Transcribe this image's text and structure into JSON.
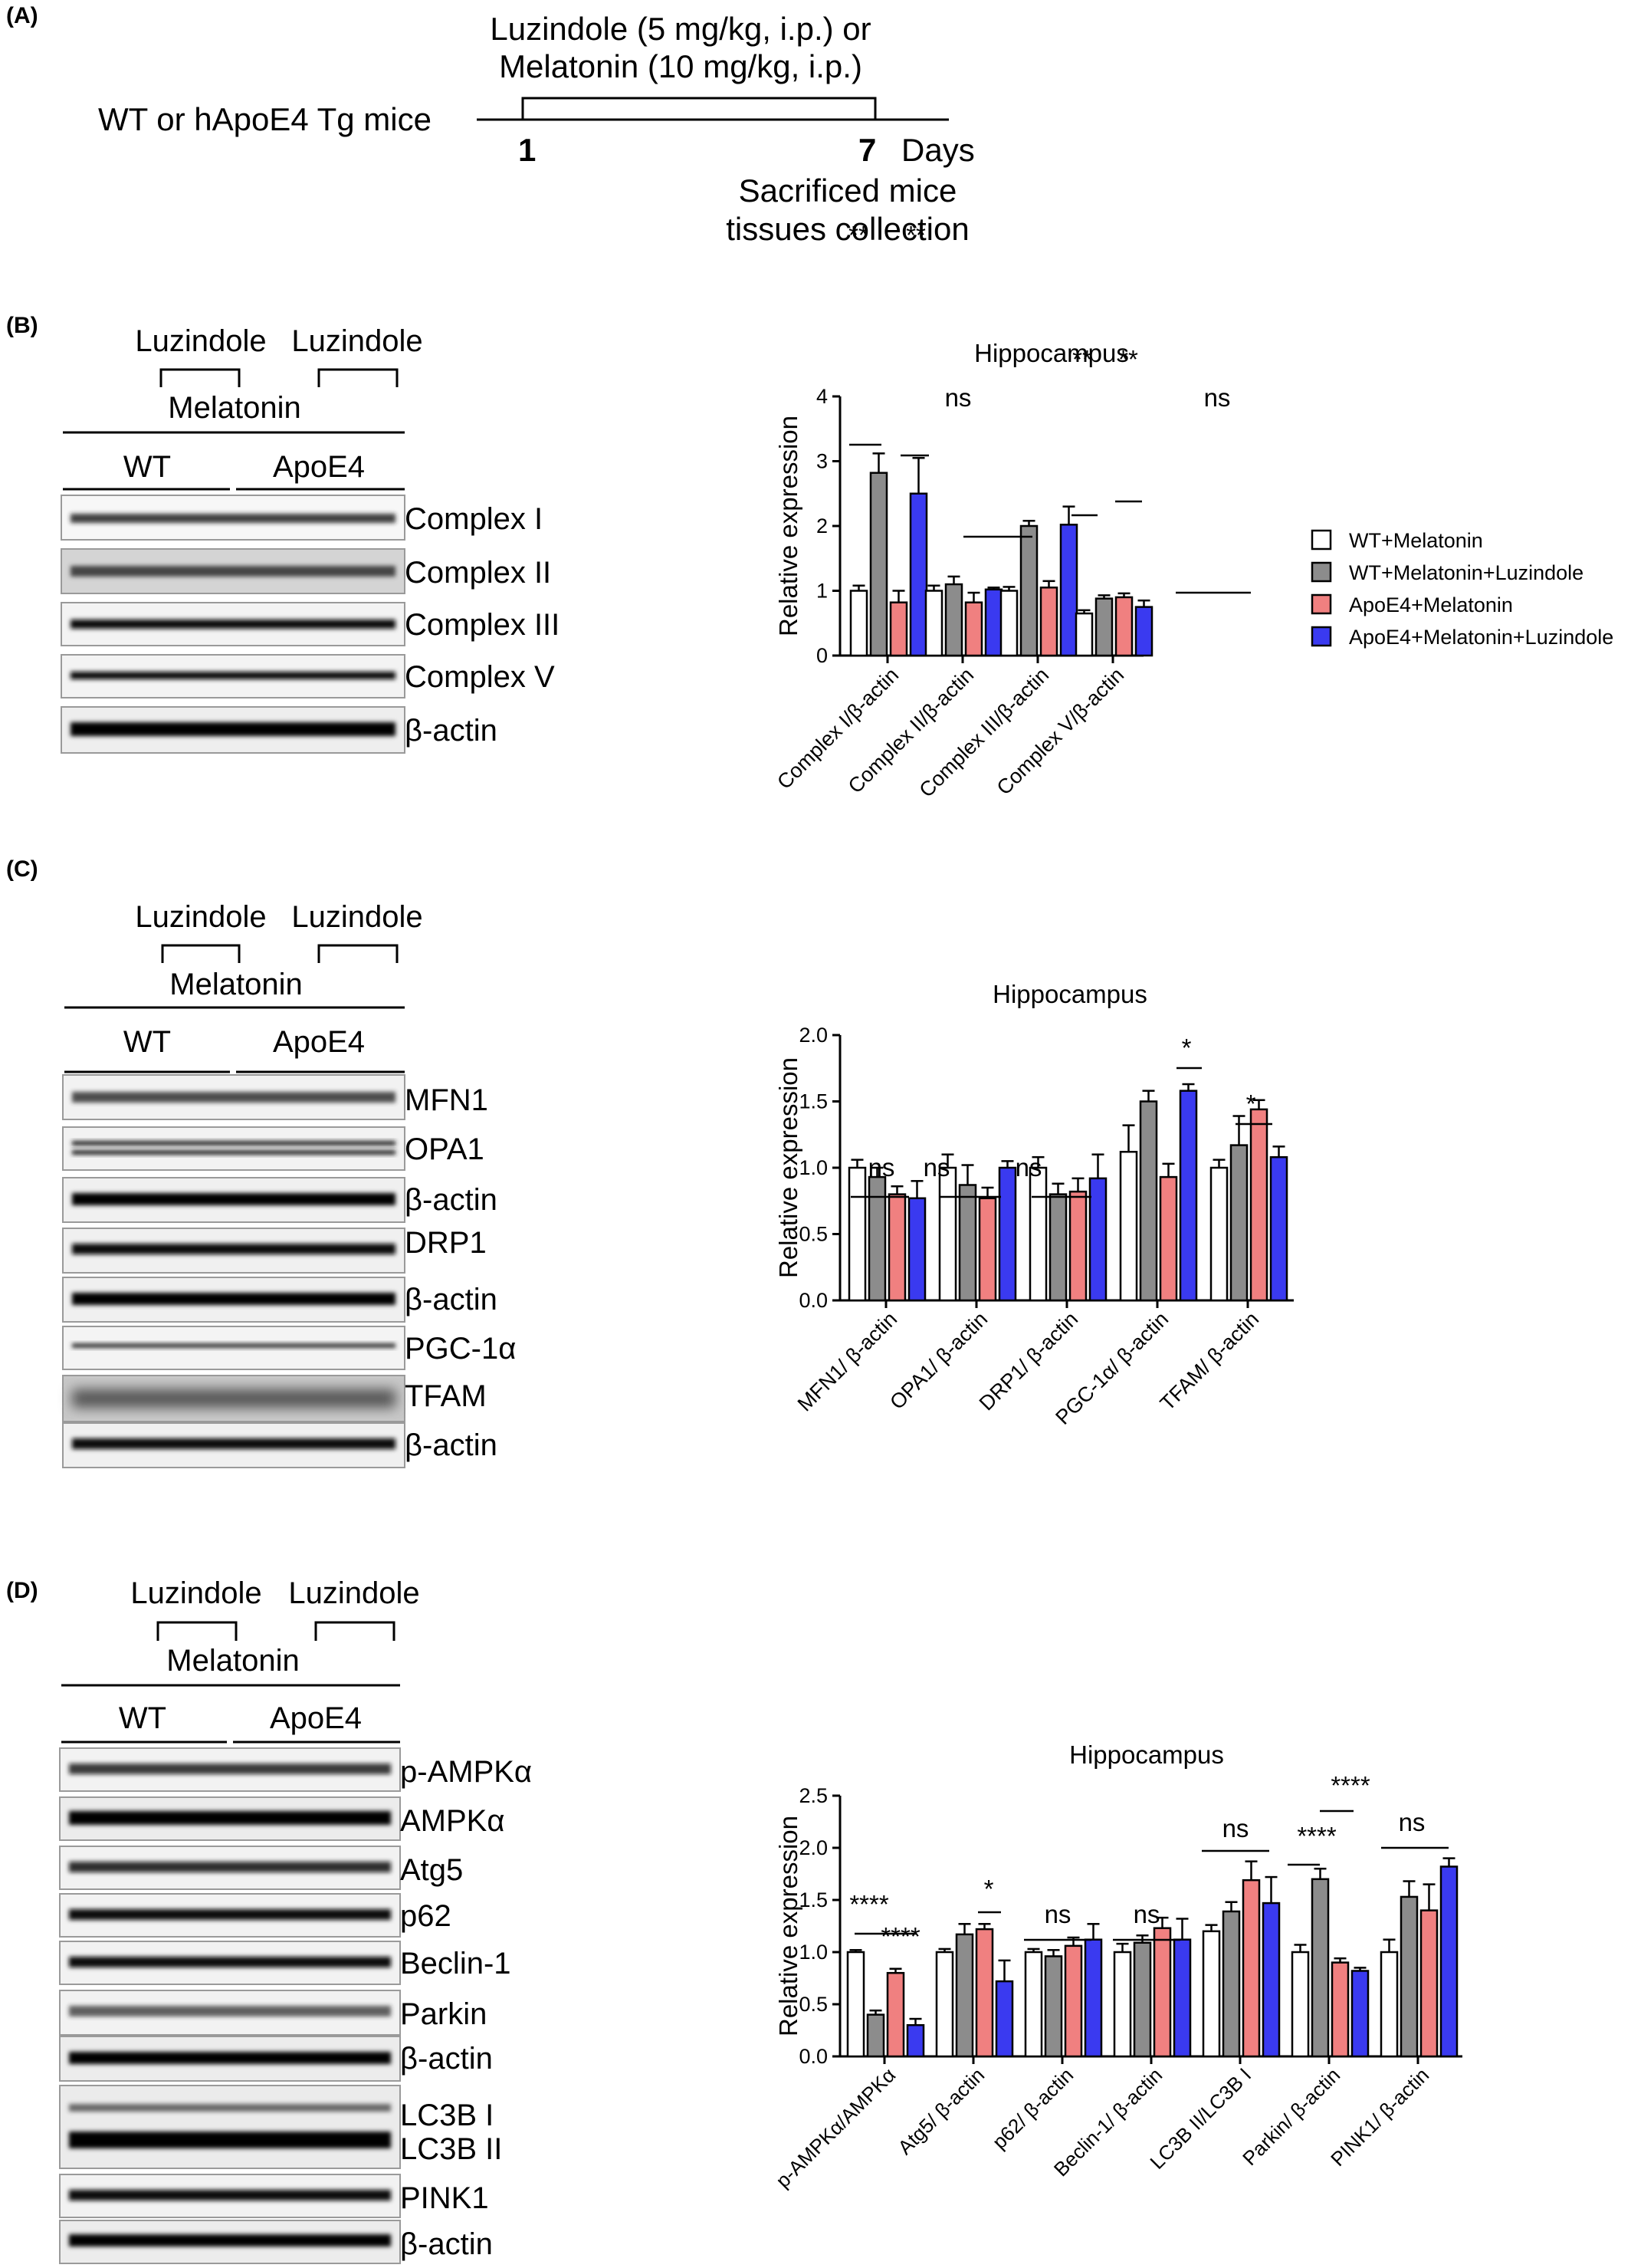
{
  "panelA": {
    "label": "(A)",
    "subject": "WT or hApoE4 Tg mice",
    "treatment_line1": "Luzindole (5 mg/kg, i.p.) or",
    "treatment_line2": "Melatonin (10 mg/kg, i.p.)",
    "day_start": "1",
    "day_end": "7",
    "days_word": "Days",
    "end_line1": "Sacrificed mice",
    "end_line2": "tissues collection"
  },
  "panelB": {
    "label": "(B)",
    "luz1": "Luzindole",
    "luz2": "Luzindole",
    "melatonin": "Melatonin",
    "wt": "WT",
    "apoe4": "ApoE4",
    "blots": [
      "Complex I",
      "Complex II",
      "Complex III",
      "Complex V",
      "β-actin"
    ]
  },
  "panelC": {
    "label": "(C)",
    "luz1": "Luzindole",
    "luz2": "Luzindole",
    "melatonin": "Melatonin",
    "wt": "WT",
    "apoe4": "ApoE4",
    "blots": [
      "MFN1",
      "OPA1",
      "β-actin",
      "DRP1",
      "β-actin",
      "PGC-1α",
      "TFAM",
      "β-actin"
    ]
  },
  "panelD": {
    "label": "(D)",
    "luz1": "Luzindole",
    "luz2": "Luzindole",
    "melatonin": "Melatonin",
    "wt": "WT",
    "apoe4": "ApoE4",
    "blots": [
      "p-AMPKα",
      "AMPKα",
      "Atg5",
      "p62",
      "Beclin-1",
      "Parkin",
      "β-actin",
      "LC3B I",
      "LC3B II",
      "PINK1",
      "β-actin"
    ]
  },
  "colors": {
    "wt_mel": "#ffffff",
    "wt_mel_luz": "#8c8c8c",
    "apoe4_mel": "#f08080",
    "apoe4_mel_luz": "#3a3af0"
  },
  "chart_data": [
    {
      "type": "bar",
      "title": "Hippocampus",
      "ylabel": "Relative expression",
      "ylim": [
        0,
        4
      ],
      "yticks": [
        "0",
        "1",
        "2",
        "3",
        "4"
      ],
      "categories": [
        "Complex I/β-actin",
        "Complex II/β-actin",
        "Complex III/β-actin",
        "Complex V/β-actin"
      ],
      "series": [
        {
          "name": "WT+Melatonin",
          "values": [
            1.0,
            1.0,
            1.0,
            0.65
          ],
          "err": [
            0.08,
            0.08,
            0.06,
            0.05
          ]
        },
        {
          "name": "WT+Melatonin+Luzindole",
          "values": [
            2.82,
            1.1,
            2.0,
            0.88
          ],
          "err": [
            0.3,
            0.12,
            0.08,
            0.05
          ]
        },
        {
          "name": "ApoE4+Melatonin",
          "values": [
            0.82,
            0.82,
            1.05,
            0.9
          ],
          "err": [
            0.18,
            0.15,
            0.1,
            0.06
          ]
        },
        {
          "name": "ApoE4+Melatonin+Luzindole",
          "values": [
            2.5,
            1.02,
            2.02,
            0.75
          ],
          "err": [
            0.55,
            0.03,
            0.28,
            0.1
          ]
        }
      ],
      "annotations": [
        "**",
        "**",
        "ns",
        "**",
        "**",
        "ns"
      ],
      "legend": "right"
    },
    {
      "type": "bar",
      "title": "Hippocampus",
      "ylabel": "Relative expression",
      "ylim": [
        0,
        2.0
      ],
      "yticks": [
        "0.0",
        "0.5",
        "1.0",
        "1.5",
        "2.0"
      ],
      "categories": [
        "MFN1/ β-actin",
        "OPA1/ β-actin",
        "DRP1/ β-actin",
        "PGC-1α/ β-actin",
        "TFAM/ β-actin"
      ],
      "series": [
        {
          "values": [
            1.0,
            1.0,
            1.0,
            1.12,
            1.0
          ],
          "err": [
            0.06,
            0.1,
            0.08,
            0.2,
            0.06
          ]
        },
        {
          "values": [
            0.93,
            0.87,
            0.8,
            1.5,
            1.17
          ],
          "err": [
            0.07,
            0.15,
            0.08,
            0.08,
            0.22
          ]
        },
        {
          "values": [
            0.8,
            0.77,
            0.82,
            0.93,
            1.44
          ],
          "err": [
            0.06,
            0.08,
            0.1,
            0.1,
            0.07
          ]
        },
        {
          "values": [
            0.77,
            1.0,
            0.92,
            1.58,
            1.08
          ],
          "err": [
            0.13,
            0.05,
            0.18,
            0.05,
            0.08
          ]
        }
      ],
      "annotations": [
        "ns",
        "ns",
        "ns",
        "*",
        "*"
      ]
    },
    {
      "type": "bar",
      "title": "Hippocampus",
      "ylabel": "Relative expression",
      "ylim": [
        0,
        2.5
      ],
      "yticks": [
        "0.0",
        "0.5",
        "1.0",
        "1.5",
        "2.0",
        "2.5"
      ],
      "categories": [
        "p-AMPKα/AMPKα",
        "Atg5/ β-actin",
        "p62/ β-actin",
        "Beclin-1/ β-actin",
        "LC3B II/LC3B I",
        "Parkin/ β-actin",
        "PINK1/ β-actin"
      ],
      "series": [
        {
          "values": [
            1.0,
            1.0,
            1.0,
            1.0,
            1.2,
            1.0,
            1.0
          ],
          "err": [
            0.02,
            0.03,
            0.03,
            0.08,
            0.06,
            0.07,
            0.12
          ]
        },
        {
          "values": [
            0.4,
            1.17,
            0.96,
            1.09,
            1.39,
            1.7,
            1.53
          ],
          "err": [
            0.04,
            0.1,
            0.06,
            0.07,
            0.09,
            0.1,
            0.15
          ]
        },
        {
          "values": [
            0.8,
            1.22,
            1.06,
            1.23,
            1.69,
            0.9,
            1.4
          ],
          "err": [
            0.04,
            0.05,
            0.08,
            0.1,
            0.18,
            0.04,
            0.25
          ]
        },
        {
          "values": [
            0.3,
            0.72,
            1.12,
            1.12,
            1.47,
            0.82,
            1.82
          ],
          "err": [
            0.06,
            0.2,
            0.15,
            0.2,
            0.25,
            0.03,
            0.08
          ]
        }
      ],
      "annotations": [
        "****",
        "****",
        "*",
        "ns",
        "ns",
        "ns",
        "****",
        "****",
        "ns"
      ]
    }
  ]
}
